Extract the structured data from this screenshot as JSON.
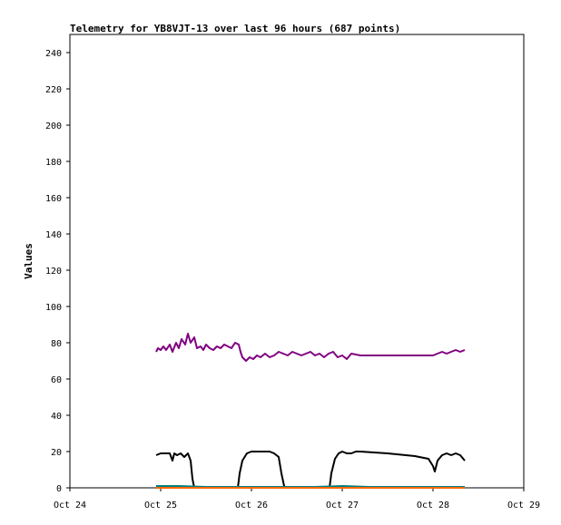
{
  "chart_data": {
    "type": "line",
    "title": "Telemetry for YB8VJT-13 over last 96 hours (687 points)",
    "xlabel": "",
    "ylabel": "Values",
    "x_ticks": [
      "Oct 24",
      "Oct 25",
      "Oct 26",
      "Oct 27",
      "Oct 28",
      "Oct 29"
    ],
    "xlim": [
      0,
      5
    ],
    "x_unit": "days since Oct 24 00:00",
    "ylim": [
      0,
      250
    ],
    "y_ticks": [
      0,
      20,
      40,
      60,
      80,
      100,
      120,
      140,
      160,
      180,
      200,
      220,
      240
    ],
    "grid": false,
    "series": [
      {
        "color": "#800080",
        "x": [
          0.95,
          0.97,
          1.0,
          1.03,
          1.06,
          1.1,
          1.13,
          1.17,
          1.2,
          1.23,
          1.27,
          1.3,
          1.33,
          1.37,
          1.4,
          1.44,
          1.47,
          1.5,
          1.54,
          1.58,
          1.62,
          1.66,
          1.7,
          1.74,
          1.78,
          1.82,
          1.86,
          1.88,
          1.9,
          1.94,
          1.98,
          2.02,
          2.06,
          2.1,
          2.15,
          2.2,
          2.25,
          2.3,
          2.35,
          2.4,
          2.45,
          2.5,
          2.55,
          2.6,
          2.65,
          2.7,
          2.75,
          2.8,
          2.85,
          2.9,
          2.95,
          3.0,
          3.05,
          3.1,
          3.2,
          3.4,
          3.6,
          3.8,
          4.0,
          4.05,
          4.1,
          4.15,
          4.2,
          4.25,
          4.3,
          4.35
        ],
        "y": [
          75,
          77,
          76,
          78,
          76,
          79,
          75,
          80,
          77,
          82,
          79,
          85,
          80,
          83,
          77,
          78,
          76,
          79,
          77,
          76,
          78,
          77,
          79,
          78,
          77,
          80,
          79,
          75,
          72,
          70,
          72,
          71,
          73,
          72,
          74,
          72,
          73,
          75,
          74,
          73,
          75,
          74,
          73,
          74,
          75,
          73,
          74,
          72,
          74,
          75,
          72,
          73,
          71,
          74,
          73,
          73,
          73,
          73,
          73,
          74,
          75,
          74,
          75,
          76,
          75,
          76
        ]
      },
      {
        "color": "#000000",
        "x": [
          0.95,
          1.0,
          1.05,
          1.1,
          1.13,
          1.15,
          1.18,
          1.22,
          1.26,
          1.3,
          1.33,
          1.35,
          1.37,
          1.4,
          1.5,
          1.7,
          1.85,
          1.87,
          1.9,
          1.95,
          2.0,
          2.05,
          2.1,
          2.15,
          2.2,
          2.25,
          2.3,
          2.33,
          2.36,
          2.38,
          2.5,
          2.7,
          2.86,
          2.88,
          2.92,
          2.96,
          3.0,
          3.05,
          3.1,
          3.15,
          3.2,
          3.5,
          3.8,
          3.95,
          4.0,
          4.02,
          4.05,
          4.1,
          4.15,
          4.2,
          4.25,
          4.3,
          4.35
        ],
        "y": [
          18,
          19,
          19,
          19,
          15,
          19,
          18,
          19,
          17,
          19,
          15,
          5,
          0,
          0,
          0,
          0,
          0,
          8,
          15,
          19,
          20,
          20,
          20,
          20,
          20,
          19,
          17,
          8,
          1,
          0,
          0,
          0,
          0,
          8,
          16,
          19,
          20,
          19,
          19,
          20,
          20,
          19,
          17.5,
          16,
          12,
          9,
          15,
          18,
          19,
          18,
          19,
          18,
          15
        ]
      },
      {
        "color": "#008080",
        "x": [
          0.95,
          1.2,
          1.5,
          1.8,
          2.1,
          2.4,
          2.7,
          3.0,
          3.3,
          3.6,
          3.9,
          4.2,
          4.35
        ],
        "y": [
          1,
          1,
          0.5,
          0.5,
          0.5,
          0.5,
          0.5,
          1,
          0.5,
          0.5,
          0.5,
          0.5,
          0.5
        ]
      },
      {
        "color": "#ff6600",
        "x": [
          0.95,
          1.5,
          2.0,
          2.5,
          3.0,
          3.5,
          4.0,
          4.35
        ],
        "y": [
          0,
          0,
          0,
          0,
          0,
          0,
          0,
          0
        ]
      }
    ]
  }
}
